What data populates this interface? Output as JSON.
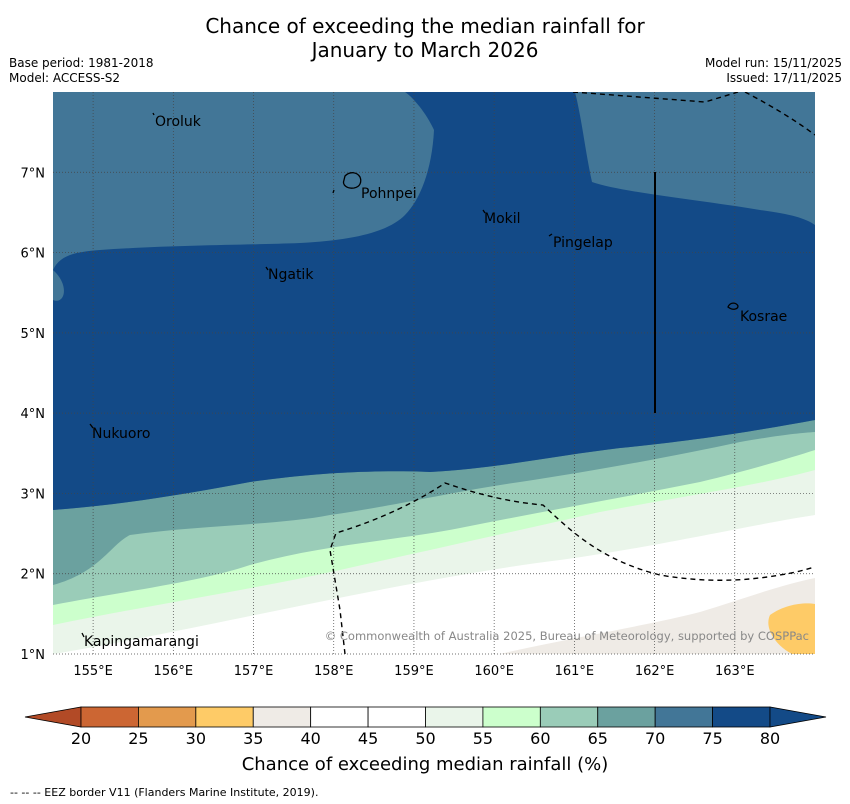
{
  "title_line1": "Chance of exceeding the median rainfall for",
  "title_line2": "January to March 2026",
  "meta": {
    "base_period": "Base period: 1981-2018",
    "model": "Model: ACCESS-S2",
    "model_run": "Model run: 15/11/2025",
    "issued": "Issued: 17/11/2025"
  },
  "map": {
    "lon_range": [
      154.5,
      164.0
    ],
    "lat_range": [
      1.0,
      8.0
    ],
    "lon_ticks": [
      "155°E",
      "156°E",
      "157°E",
      "158°E",
      "159°E",
      "160°E",
      "161°E",
      "162°E",
      "163°E"
    ],
    "lat_ticks": [
      "7°N",
      "6°N",
      "5°N",
      "4°N",
      "3°N",
      "2°N",
      "1°N"
    ],
    "places": {
      "oroluk": "Oroluk",
      "pohnpei": "Pohnpei",
      "mokil": "Mokil",
      "pingelap": "Pingelap",
      "ngatik": "Ngatik",
      "kosrae": "Kosrae",
      "nukuoro": "Nukuoro",
      "kapingamarangi": "Kapingamarangi"
    },
    "copyright": "© Commonwealth of Australia 2025, Bureau of Meteorology, supported by COSPPac"
  },
  "colorbar": {
    "labels": [
      "20",
      "25",
      "30",
      "35",
      "40",
      "45",
      "50",
      "55",
      "60",
      "65",
      "70",
      "75",
      "80"
    ],
    "colors": [
      "#b24a26",
      "#cc6633",
      "#e39a4d",
      "#fecb67",
      "#efebe6",
      "#ffffff",
      "#ffffff",
      "#eaf5ea",
      "#ccffcc",
      "#9accb8",
      "#6ba19f",
      "#427697",
      "#134a87"
    ],
    "title": "Chance of exceeding median rainfall (%)"
  },
  "footnote": "--  --  -- EEZ border V11 (Flanders Marine Institute, 2019)."
}
